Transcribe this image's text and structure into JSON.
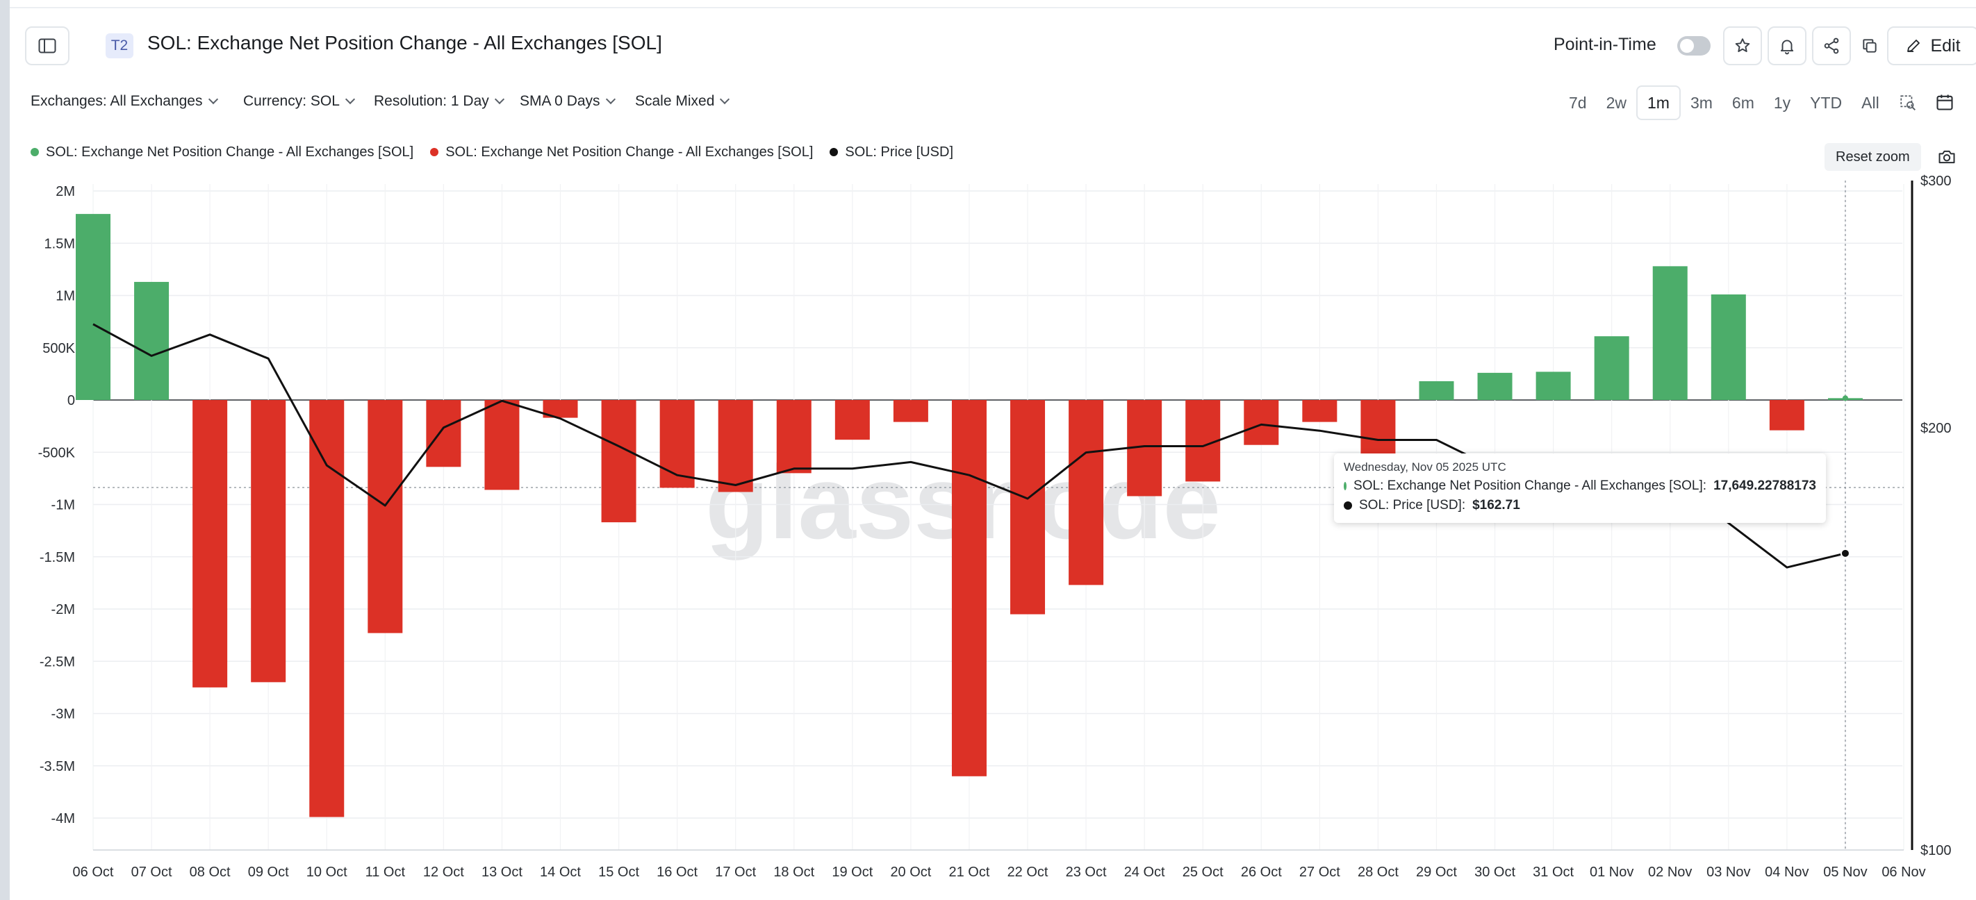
{
  "header": {
    "badge": "T2",
    "title": "SOL: Exchange Net Position Change - All Exchanges [SOL]",
    "point_in_time_label": "Point-in-Time",
    "edit_label": "Edit",
    "icons": [
      "sidebar-toggle-icon",
      "star-icon",
      "bell-icon",
      "share-icon",
      "copy-icon",
      "pencil-icon"
    ]
  },
  "filters": {
    "exchanges": "Exchanges: All Exchanges",
    "currency": "Currency: SOL",
    "resolution": "Resolution: 1 Day",
    "sma": "SMA 0 Days",
    "scale": "Scale Mixed"
  },
  "ranges": [
    "7d",
    "2w",
    "1m",
    "3m",
    "6m",
    "1y",
    "YTD",
    "All"
  ],
  "active_range": "1m",
  "legend": [
    {
      "label": "SOL: Exchange Net Position Change - All Exchanges [SOL]",
      "color": "#4cad6a"
    },
    {
      "label": "SOL: Exchange Net Position Change - All Exchanges [SOL]",
      "color": "#dc3126"
    },
    {
      "label": "SOL: Price [USD]",
      "color": "#111111"
    }
  ],
  "reset_zoom_label": "Reset zoom",
  "watermark": "glassnode",
  "tooltip": {
    "date": "Wednesday, Nov 05 2025 UTC",
    "series1_label": "SOL: Exchange Net Position Change - All Exchanges [SOL]: ",
    "series1_value": "17,649.22788173",
    "series2_label": "SOL: Price [USD]: ",
    "series2_value": "$162.71",
    "series1_color": "#4cad6a",
    "series2_color": "#111111"
  },
  "chart_data": {
    "type": "bar",
    "categories": [
      "06 Oct",
      "07 Oct",
      "08 Oct",
      "09 Oct",
      "10 Oct",
      "11 Oct",
      "12 Oct",
      "13 Oct",
      "14 Oct",
      "15 Oct",
      "16 Oct",
      "17 Oct",
      "18 Oct",
      "19 Oct",
      "20 Oct",
      "21 Oct",
      "22 Oct",
      "23 Oct",
      "24 Oct",
      "25 Oct",
      "26 Oct",
      "27 Oct",
      "28 Oct",
      "29 Oct",
      "30 Oct",
      "31 Oct",
      "01 Nov",
      "02 Nov",
      "03 Nov",
      "04 Nov",
      "05 Nov",
      "06 Nov"
    ],
    "series": [
      {
        "values": [
          1780000,
          1130000,
          -2750000,
          -2700000,
          -3990000,
          -2230000,
          -640000,
          -860000,
          -170000,
          -1170000,
          -840000,
          -880000,
          -700000,
          -380000,
          -210000,
          -3600000,
          -2050000,
          -1770000,
          -920000,
          -780000,
          -430000,
          -210000,
          -530000,
          180000,
          260000,
          270000,
          610000,
          1280000,
          1010000,
          -290000,
          17649.22788173,
          null
        ],
        "positive_color": "#4cad6a",
        "negative_color": "#dc3126"
      },
      {
        "name": "SOL: Price [USD]",
        "axis": "right",
        "values": [
          237,
          225,
          233,
          224,
          188,
          176,
          200,
          209,
          203,
          194,
          185,
          182,
          187,
          187,
          189,
          185,
          178,
          192,
          194,
          194,
          201,
          199,
          196,
          196,
          187,
          186,
          185,
          186,
          171,
          159,
          162.71,
          null
        ],
        "color": "#111111"
      }
    ],
    "y_left": {
      "ticks": [
        "2M",
        "1.5M",
        "1M",
        "500K",
        "0",
        "-500K",
        "-1M",
        "-1.5M",
        "-2M",
        "-2.5M",
        "-3M",
        "-3.5M",
        "-4M"
      ],
      "ylim": [
        -4000000,
        2000000
      ]
    },
    "y_right": {
      "ticks": [
        "$300",
        "$200",
        "$100"
      ],
      "ylim": [
        100,
        300
      ]
    },
    "grid": true,
    "legend_position": "top-left",
    "hover_category": "05 Nov"
  }
}
